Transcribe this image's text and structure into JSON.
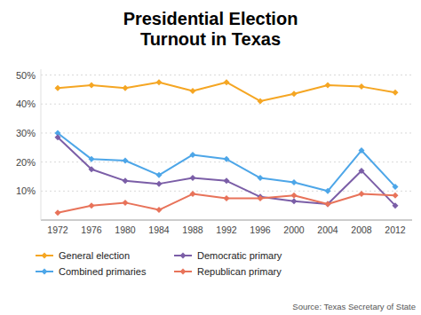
{
  "chart_data": {
    "type": "line",
    "title": "Presidential Election\nTurnout in Texas",
    "x": [
      1972,
      1976,
      1980,
      1984,
      1988,
      1992,
      1996,
      2000,
      2004,
      2008,
      2012
    ],
    "series": [
      {
        "name": "General election",
        "color": "#f5a623",
        "values": [
          45.5,
          46.5,
          45.5,
          47.5,
          44.5,
          47.5,
          41.0,
          43.5,
          46.5,
          46.0,
          44.0
        ]
      },
      {
        "name": "Combined primaries",
        "color": "#4da6e8",
        "values": [
          30.0,
          21.0,
          20.5,
          15.5,
          22.5,
          21.0,
          14.5,
          13.0,
          10.0,
          24.0,
          11.5
        ]
      },
      {
        "name": "Democratic primary",
        "color": "#7b5ea7",
        "values": [
          28.5,
          17.5,
          13.5,
          12.5,
          14.5,
          13.5,
          8.0,
          6.5,
          5.5,
          17.0,
          5.0
        ]
      },
      {
        "name": "Republican primary",
        "color": "#e8735a",
        "values": [
          2.5,
          5.0,
          6.0,
          3.5,
          9.0,
          7.5,
          7.5,
          8.5,
          5.5,
          9.0,
          8.5
        ]
      }
    ],
    "xlim": [
      1970,
      2014
    ],
    "xticks": [
      1972,
      1976,
      1980,
      1984,
      1988,
      1992,
      1996,
      2000,
      2004,
      2008,
      2012
    ],
    "ylim": [
      0,
      52
    ],
    "yticks": [
      {
        "value": 10,
        "label": "10%"
      },
      {
        "value": 20,
        "label": "20%"
      },
      {
        "value": 30,
        "label": "30%"
      },
      {
        "value": 40,
        "label": "40%"
      },
      {
        "value": 50,
        "label": "50%"
      }
    ],
    "grid": true,
    "legend": "bottom",
    "marker": "diamond",
    "source": "Source: Texas Secretary of State"
  }
}
